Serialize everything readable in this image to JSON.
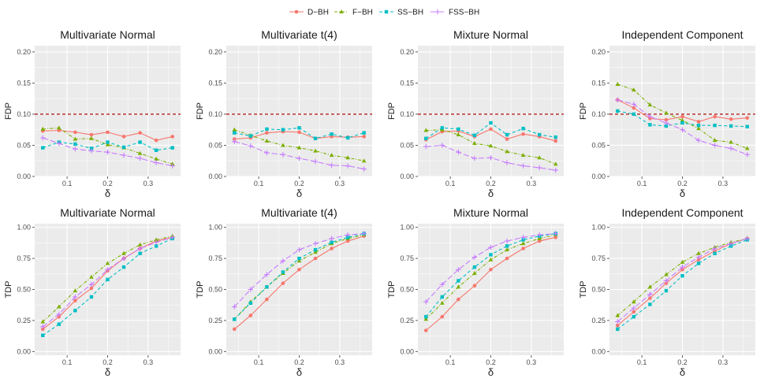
{
  "colors": {
    "D-BH": "#F8766D",
    "F-BH": "#7CAE00",
    "SS-BH": "#00BFC4",
    "FSS-BH": "#C77CFF",
    "reference": "#B22222",
    "panel_bg": "#EBEBEB",
    "grid": "#FFFFFF"
  },
  "legend": {
    "placement": "top-center",
    "entries": [
      {
        "key": "D-BH",
        "label": "D−BH",
        "marker": "circle",
        "linestyle": "solid"
      },
      {
        "key": "F-BH",
        "label": "F−BH",
        "marker": "triangle",
        "linestyle": "dotdash"
      },
      {
        "key": "SS-BH",
        "label": "SS−BH",
        "marker": "square",
        "linestyle": "dashed"
      },
      {
        "key": "FSS-BH",
        "label": "FSS−BH",
        "marker": "plus",
        "linestyle": "longdash"
      }
    ]
  },
  "chart_data": [
    {
      "type": "line",
      "title": "Multivariate Normal",
      "xlabel": "δ",
      "ylabel": "FDP",
      "x": [
        0.04,
        0.08,
        0.12,
        0.16,
        0.2,
        0.24,
        0.28,
        0.32,
        0.36
      ],
      "xlim": [
        0.02,
        0.38
      ],
      "ylim": [
        0,
        0.21
      ],
      "xticks": [
        0.1,
        0.2,
        0.3
      ],
      "xticklabels": [
        "0.1",
        "0.2",
        "0.3"
      ],
      "yticks": [
        0,
        0.05,
        0.1,
        0.15,
        0.2
      ],
      "yticklabels": [
        "0.00",
        "0.05",
        "0.10",
        "0.15",
        "0.20"
      ],
      "hline": 0.1,
      "grid": true,
      "series": [
        {
          "name": "D−BH",
          "key": "D-BH",
          "values": [
            0.073,
            0.074,
            0.071,
            0.067,
            0.071,
            0.064,
            0.07,
            0.058,
            0.064
          ]
        },
        {
          "name": "F−BH",
          "key": "F-BH",
          "values": [
            0.076,
            0.078,
            0.06,
            0.061,
            0.051,
            0.046,
            0.037,
            0.028,
            0.02
          ]
        },
        {
          "name": "SS−BH",
          "key": "SS-BH",
          "values": [
            0.046,
            0.055,
            0.052,
            0.045,
            0.055,
            0.047,
            0.055,
            0.042,
            0.046
          ]
        },
        {
          "name": "FSS−BH",
          "key": "FSS-BH",
          "values": [
            0.062,
            0.053,
            0.044,
            0.041,
            0.039,
            0.034,
            0.029,
            0.022,
            0.017
          ]
        }
      ]
    },
    {
      "type": "line",
      "title": "Multivariate t(4)",
      "xlabel": "δ",
      "ylabel": "FDP",
      "x": [
        0.04,
        0.08,
        0.12,
        0.16,
        0.2,
        0.24,
        0.28,
        0.32,
        0.36
      ],
      "xlim": [
        0.02,
        0.38
      ],
      "ylim": [
        0,
        0.21
      ],
      "xticks": [
        0.1,
        0.2,
        0.3
      ],
      "xticklabels": [
        "0.1",
        "0.2",
        "0.3"
      ],
      "yticks": [
        0,
        0.05,
        0.1,
        0.15,
        0.2
      ],
      "yticklabels": [
        "0.00",
        "0.05",
        "0.10",
        "0.15",
        "0.20"
      ],
      "hline": 0.1,
      "grid": true,
      "series": [
        {
          "name": "D−BH",
          "key": "D-BH",
          "values": [
            0.06,
            0.062,
            0.07,
            0.072,
            0.071,
            0.061,
            0.064,
            0.063,
            0.064
          ]
        },
        {
          "name": "F−BH",
          "key": "F-BH",
          "values": [
            0.075,
            0.066,
            0.057,
            0.05,
            0.046,
            0.041,
            0.034,
            0.03,
            0.025
          ]
        },
        {
          "name": "SS−BH",
          "key": "SS-BH",
          "values": [
            0.07,
            0.065,
            0.076,
            0.075,
            0.078,
            0.061,
            0.068,
            0.062,
            0.07
          ]
        },
        {
          "name": "FSS−BH",
          "key": "FSS-BH",
          "values": [
            0.056,
            0.049,
            0.038,
            0.035,
            0.029,
            0.024,
            0.018,
            0.017,
            0.012
          ]
        }
      ]
    },
    {
      "type": "line",
      "title": "Mixture Normal",
      "xlabel": "δ",
      "ylabel": "FDP",
      "x": [
        0.04,
        0.08,
        0.12,
        0.16,
        0.2,
        0.24,
        0.28,
        0.32,
        0.36
      ],
      "xlim": [
        0.02,
        0.38
      ],
      "ylim": [
        0,
        0.21
      ],
      "xticks": [
        0.1,
        0.2,
        0.3
      ],
      "xticklabels": [
        "0.1",
        "0.2",
        "0.3"
      ],
      "yticks": [
        0,
        0.05,
        0.1,
        0.15,
        0.2
      ],
      "yticklabels": [
        "0.00",
        "0.05",
        "0.10",
        "0.15",
        "0.20"
      ],
      "hline": 0.1,
      "grid": true,
      "series": [
        {
          "name": "D−BH",
          "key": "D-BH",
          "values": [
            0.059,
            0.072,
            0.073,
            0.064,
            0.076,
            0.06,
            0.068,
            0.064,
            0.057
          ]
        },
        {
          "name": "F−BH",
          "key": "F-BH",
          "values": [
            0.074,
            0.075,
            0.067,
            0.053,
            0.049,
            0.04,
            0.034,
            0.03,
            0.02
          ]
        },
        {
          "name": "SS−BH",
          "key": "SS-BH",
          "values": [
            0.061,
            0.078,
            0.076,
            0.066,
            0.086,
            0.067,
            0.077,
            0.067,
            0.063
          ]
        },
        {
          "name": "FSS−BH",
          "key": "FSS-BH",
          "values": [
            0.048,
            0.05,
            0.039,
            0.029,
            0.03,
            0.022,
            0.017,
            0.014,
            0.01
          ]
        }
      ]
    },
    {
      "type": "line",
      "title": "Independent Component",
      "xlabel": "δ",
      "ylabel": "FDP",
      "x": [
        0.04,
        0.08,
        0.12,
        0.16,
        0.2,
        0.24,
        0.28,
        0.32,
        0.36
      ],
      "xlim": [
        0.02,
        0.38
      ],
      "ylim": [
        0,
        0.21
      ],
      "xticks": [
        0.1,
        0.2,
        0.3
      ],
      "xticklabels": [
        "0.1",
        "0.2",
        "0.3"
      ],
      "yticks": [
        0,
        0.05,
        0.1,
        0.15,
        0.2
      ],
      "yticklabels": [
        "0.00",
        "0.05",
        "0.10",
        "0.15",
        "0.20"
      ],
      "hline": 0.1,
      "grid": true,
      "series": [
        {
          "name": "D−BH",
          "key": "D-BH",
          "values": [
            0.123,
            0.11,
            0.093,
            0.091,
            0.096,
            0.088,
            0.096,
            0.092,
            0.094
          ]
        },
        {
          "name": "F−BH",
          "key": "F-BH",
          "values": [
            0.148,
            0.139,
            0.115,
            0.102,
            0.09,
            0.077,
            0.058,
            0.055,
            0.045
          ]
        },
        {
          "name": "SS−BH",
          "key": "SS-BH",
          "values": [
            0.105,
            0.1,
            0.083,
            0.081,
            0.086,
            0.082,
            0.082,
            0.081,
            0.08
          ]
        },
        {
          "name": "FSS−BH",
          "key": "FSS-BH",
          "values": [
            0.123,
            0.116,
            0.096,
            0.086,
            0.075,
            0.058,
            0.05,
            0.045,
            0.035
          ]
        }
      ]
    },
    {
      "type": "line",
      "title": "Multivariate Normal",
      "xlabel": "δ",
      "ylabel": "TDP",
      "x": [
        0.04,
        0.08,
        0.12,
        0.16,
        0.2,
        0.24,
        0.28,
        0.32,
        0.36
      ],
      "xlim": [
        0.02,
        0.38
      ],
      "ylim": [
        -0.03,
        1.03
      ],
      "xticks": [
        0.1,
        0.2,
        0.3
      ],
      "xticklabels": [
        "0.1",
        "0.2",
        "0.3"
      ],
      "yticks": [
        0,
        0.25,
        0.5,
        0.75,
        1.0
      ],
      "yticklabels": [
        "0.00",
        "0.25",
        "0.50",
        "0.75",
        "1.00"
      ],
      "grid": true,
      "series": [
        {
          "name": "D−BH",
          "key": "D-BH",
          "values": [
            0.18,
            0.28,
            0.41,
            0.51,
            0.65,
            0.75,
            0.83,
            0.89,
            0.92
          ]
        },
        {
          "name": "F−BH",
          "key": "F-BH",
          "values": [
            0.24,
            0.36,
            0.49,
            0.6,
            0.71,
            0.79,
            0.86,
            0.9,
            0.93
          ]
        },
        {
          "name": "SS−BH",
          "key": "SS-BH",
          "values": [
            0.13,
            0.22,
            0.33,
            0.44,
            0.58,
            0.68,
            0.79,
            0.85,
            0.91
          ]
        },
        {
          "name": "FSS−BH",
          "key": "FSS-BH",
          "values": [
            0.2,
            0.3,
            0.44,
            0.54,
            0.66,
            0.75,
            0.83,
            0.88,
            0.92
          ]
        }
      ]
    },
    {
      "type": "line",
      "title": "Multivariate t(4)",
      "xlabel": "δ",
      "ylabel": "TDP",
      "x": [
        0.04,
        0.08,
        0.12,
        0.16,
        0.2,
        0.24,
        0.28,
        0.32,
        0.36
      ],
      "xlim": [
        0.02,
        0.38
      ],
      "ylim": [
        -0.03,
        1.03
      ],
      "xticks": [
        0.1,
        0.2,
        0.3
      ],
      "xticklabels": [
        "0.1",
        "0.2",
        "0.3"
      ],
      "yticks": [
        0,
        0.25,
        0.5,
        0.75,
        1.0
      ],
      "yticklabels": [
        "0.00",
        "0.25",
        "0.50",
        "0.75",
        "1.00"
      ],
      "grid": true,
      "series": [
        {
          "name": "D−BH",
          "key": "D-BH",
          "values": [
            0.18,
            0.29,
            0.42,
            0.55,
            0.66,
            0.75,
            0.83,
            0.89,
            0.93
          ]
        },
        {
          "name": "F−BH",
          "key": "F-BH",
          "values": [
            0.26,
            0.4,
            0.52,
            0.63,
            0.73,
            0.8,
            0.87,
            0.91,
            0.94
          ]
        },
        {
          "name": "SS−BH",
          "key": "SS-BH",
          "values": [
            0.26,
            0.39,
            0.52,
            0.64,
            0.75,
            0.82,
            0.88,
            0.92,
            0.95
          ]
        },
        {
          "name": "FSS−BH",
          "key": "FSS-BH",
          "values": [
            0.36,
            0.5,
            0.62,
            0.73,
            0.82,
            0.87,
            0.91,
            0.94,
            0.95
          ]
        }
      ]
    },
    {
      "type": "line",
      "title": "Mixture Normal",
      "xlabel": "δ",
      "ylabel": "TDP",
      "x": [
        0.04,
        0.08,
        0.12,
        0.16,
        0.2,
        0.24,
        0.28,
        0.32,
        0.36
      ],
      "xlim": [
        0.02,
        0.38
      ],
      "ylim": [
        -0.03,
        1.03
      ],
      "xticks": [
        0.1,
        0.2,
        0.3
      ],
      "xticklabels": [
        "0.1",
        "0.2",
        "0.3"
      ],
      "yticks": [
        0,
        0.25,
        0.5,
        0.75,
        1.0
      ],
      "yticklabels": [
        "0.00",
        "0.25",
        "0.50",
        "0.75",
        "1.00"
      ],
      "grid": true,
      "series": [
        {
          "name": "D−BH",
          "key": "D-BH",
          "values": [
            0.17,
            0.28,
            0.42,
            0.53,
            0.66,
            0.75,
            0.83,
            0.89,
            0.92
          ]
        },
        {
          "name": "F−BH",
          "key": "F-BH",
          "values": [
            0.26,
            0.39,
            0.52,
            0.63,
            0.74,
            0.82,
            0.87,
            0.91,
            0.94
          ]
        },
        {
          "name": "SS−BH",
          "key": "SS-BH",
          "values": [
            0.28,
            0.44,
            0.57,
            0.68,
            0.78,
            0.85,
            0.9,
            0.93,
            0.95
          ]
        },
        {
          "name": "FSS−BH",
          "key": "FSS-BH",
          "values": [
            0.4,
            0.54,
            0.66,
            0.76,
            0.84,
            0.89,
            0.92,
            0.94,
            0.95
          ]
        }
      ]
    },
    {
      "type": "line",
      "title": "Independent Component",
      "xlabel": "δ",
      "ylabel": "TDP",
      "x": [
        0.04,
        0.08,
        0.12,
        0.16,
        0.2,
        0.24,
        0.28,
        0.32,
        0.36
      ],
      "xlim": [
        0.02,
        0.38
      ],
      "ylim": [
        -0.03,
        1.03
      ],
      "xticks": [
        0.1,
        0.2,
        0.3
      ],
      "xticklabels": [
        "0.1",
        "0.2",
        "0.3"
      ],
      "yticks": [
        0,
        0.25,
        0.5,
        0.75,
        1.0
      ],
      "yticklabels": [
        "0.00",
        "0.25",
        "0.50",
        "0.75",
        "1.00"
      ],
      "grid": true,
      "series": [
        {
          "name": "D−BH",
          "key": "D-BH",
          "values": [
            0.21,
            0.32,
            0.43,
            0.55,
            0.66,
            0.74,
            0.81,
            0.87,
            0.91
          ]
        },
        {
          "name": "F−BH",
          "key": "F-BH",
          "values": [
            0.29,
            0.4,
            0.52,
            0.62,
            0.72,
            0.79,
            0.84,
            0.88,
            0.91
          ]
        },
        {
          "name": "SS−BH",
          "key": "SS-BH",
          "values": [
            0.18,
            0.28,
            0.38,
            0.49,
            0.61,
            0.71,
            0.79,
            0.85,
            0.9
          ]
        },
        {
          "name": "FSS−BH",
          "key": "FSS-BH",
          "values": [
            0.24,
            0.35,
            0.46,
            0.57,
            0.68,
            0.76,
            0.83,
            0.87,
            0.91
          ]
        }
      ]
    }
  ]
}
